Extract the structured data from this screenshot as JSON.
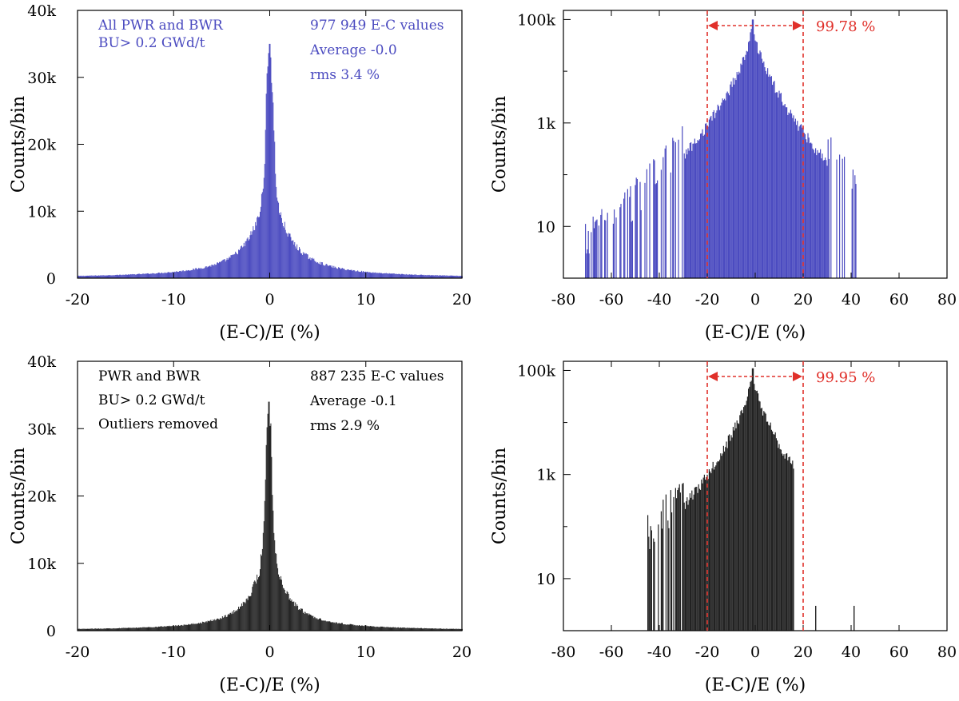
{
  "chart_data": [
    {
      "type": "bar",
      "panel": "top-left",
      "color": "#4b4bc0",
      "xlabel": "(E-C)/E (%)",
      "ylabel": "Counts/bin",
      "xlim": [
        -20,
        20
      ],
      "ylim": [
        0,
        40000
      ],
      "yscale": "linear",
      "xticks": [
        "-20",
        "-10",
        "0",
        "10",
        "20"
      ],
      "yticks": [
        "0",
        "10k",
        "20k",
        "30k",
        "40k"
      ],
      "annotations_left": [
        "All PWR and BWR",
        "BU> 0.2 GWd/t"
      ],
      "annotations_right": [
        "977 949 E-C values",
        "Average -0.0",
        "rms 3.4 %"
      ],
      "distribution": {
        "peak_x": 0.0,
        "peak": 35000,
        "sigma_core": 0.35,
        "tail_scale": 1.9,
        "x_min": -20,
        "x_max": 20
      },
      "grid": false
    },
    {
      "type": "bar",
      "panel": "top-right",
      "color": "#4b4bc0",
      "xlabel": "(E-C)/E (%)",
      "ylabel": "Counts/bin",
      "xlim": [
        -80,
        80
      ],
      "yscale": "log",
      "ylim": [
        1,
        150000
      ],
      "xticks": [
        "-80",
        "-60",
        "-40",
        "-20",
        "0",
        "20",
        "40",
        "60",
        "80"
      ],
      "yticks": [
        "10",
        "1k",
        "100k"
      ],
      "bracket": {
        "x1": -20,
        "x2": 20,
        "label": "99.78 %",
        "color": "#e0302a"
      },
      "distribution": {
        "peak_x": -1,
        "peak": 100000,
        "x_min": -71,
        "x_max": 42,
        "secondary_bump_x": 25
      },
      "grid": false
    },
    {
      "type": "bar",
      "panel": "bottom-left",
      "color": "#222222",
      "xlabel": "(E-C)/E (%)",
      "ylabel": "Counts/bin",
      "xlim": [
        -20,
        20
      ],
      "ylim": [
        0,
        40000
      ],
      "yscale": "linear",
      "xticks": [
        "-20",
        "-10",
        "0",
        "10",
        "20"
      ],
      "yticks": [
        "0",
        "10k",
        "20k",
        "30k",
        "40k"
      ],
      "annotations_left": [
        "PWR and BWR",
        "BU> 0.2 GWd/t",
        "Outliers removed"
      ],
      "annotations_right": [
        "887 235 E-C values",
        "Average -0.1",
        "rms 2.9 %"
      ],
      "distribution": {
        "peak_x": -0.1,
        "peak": 34000,
        "sigma_core": 0.32,
        "tail_scale": 1.6,
        "x_min": -20,
        "x_max": 20
      },
      "grid": false
    },
    {
      "type": "bar",
      "panel": "bottom-right",
      "color": "#222222",
      "xlabel": "(E-C)/E (%)",
      "ylabel": "Counts/bin",
      "xlim": [
        -80,
        80
      ],
      "yscale": "log",
      "ylim": [
        1,
        150000
      ],
      "xticks": [
        "-80",
        "-60",
        "-40",
        "-20",
        "0",
        "20",
        "40",
        "60",
        "80"
      ],
      "yticks": [
        "10",
        "1k",
        "100k"
      ],
      "bracket": {
        "x1": -20,
        "x2": 20,
        "label": "99.95 %",
        "color": "#e0302a"
      },
      "distribution": {
        "peak_x": -1,
        "peak": 110000,
        "x_min": -45,
        "x_max": 16,
        "isolated_bins": [
          25,
          41
        ]
      },
      "grid": false
    }
  ]
}
